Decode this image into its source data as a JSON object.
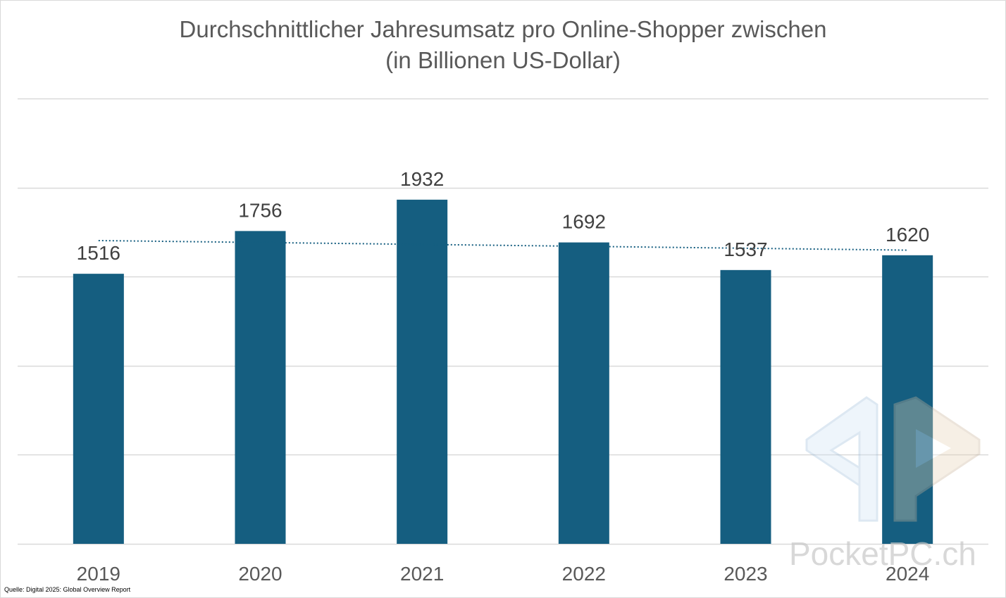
{
  "chart_data": {
    "type": "bar",
    "title_lines": [
      "Durchschnittlicher Jahresumsatz pro Online-Shopper zwischen",
      "(in Billionen US-Dollar)"
    ],
    "categories": [
      "2019",
      "2020",
      "2021",
      "2022",
      "2023",
      "2024"
    ],
    "values": [
      1516,
      1756,
      1932,
      1692,
      1537,
      1620
    ],
    "data_labels": [
      "1516",
      "1756",
      "1932",
      "1692",
      "1537",
      "1620"
    ],
    "ylim": [
      0,
      2500
    ],
    "grid": true,
    "trendline": "linear",
    "colors": {
      "bar": "#155e80",
      "trend": "#155e80",
      "grid": "#d9d9d9",
      "text": "#404040"
    }
  },
  "footer": {
    "source": "Quelle: Digital 2025: Global Overview Report"
  },
  "watermark": {
    "text": "PocketPC.ch",
    "logo_icon": "pocketpc-logo-icon"
  }
}
